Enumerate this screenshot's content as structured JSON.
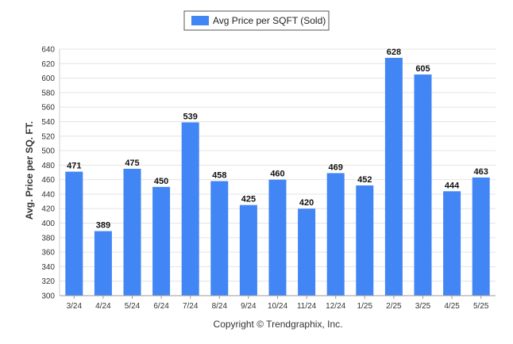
{
  "chart_data": {
    "type": "bar",
    "categories": [
      "3/24",
      "4/24",
      "5/24",
      "6/24",
      "7/24",
      "8/24",
      "9/24",
      "10/24",
      "11/24",
      "12/24",
      "1/25",
      "2/25",
      "3/25",
      "4/25",
      "5/25"
    ],
    "series": [
      {
        "name": "Avg Price per SQFT (Sold)",
        "values": [
          471,
          389,
          475,
          450,
          539,
          458,
          425,
          460,
          420,
          469,
          452,
          628,
          605,
          444,
          463
        ]
      }
    ],
    "ylabel": "Avg. Price per SQ. FT.",
    "xlabel": "",
    "ylim": [
      300,
      640
    ],
    "ytick_step": 20,
    "grid": true,
    "legend_position": "top-center",
    "bar_color": "#4285f4",
    "credit": "Copyright © Trendgraphix, Inc."
  }
}
